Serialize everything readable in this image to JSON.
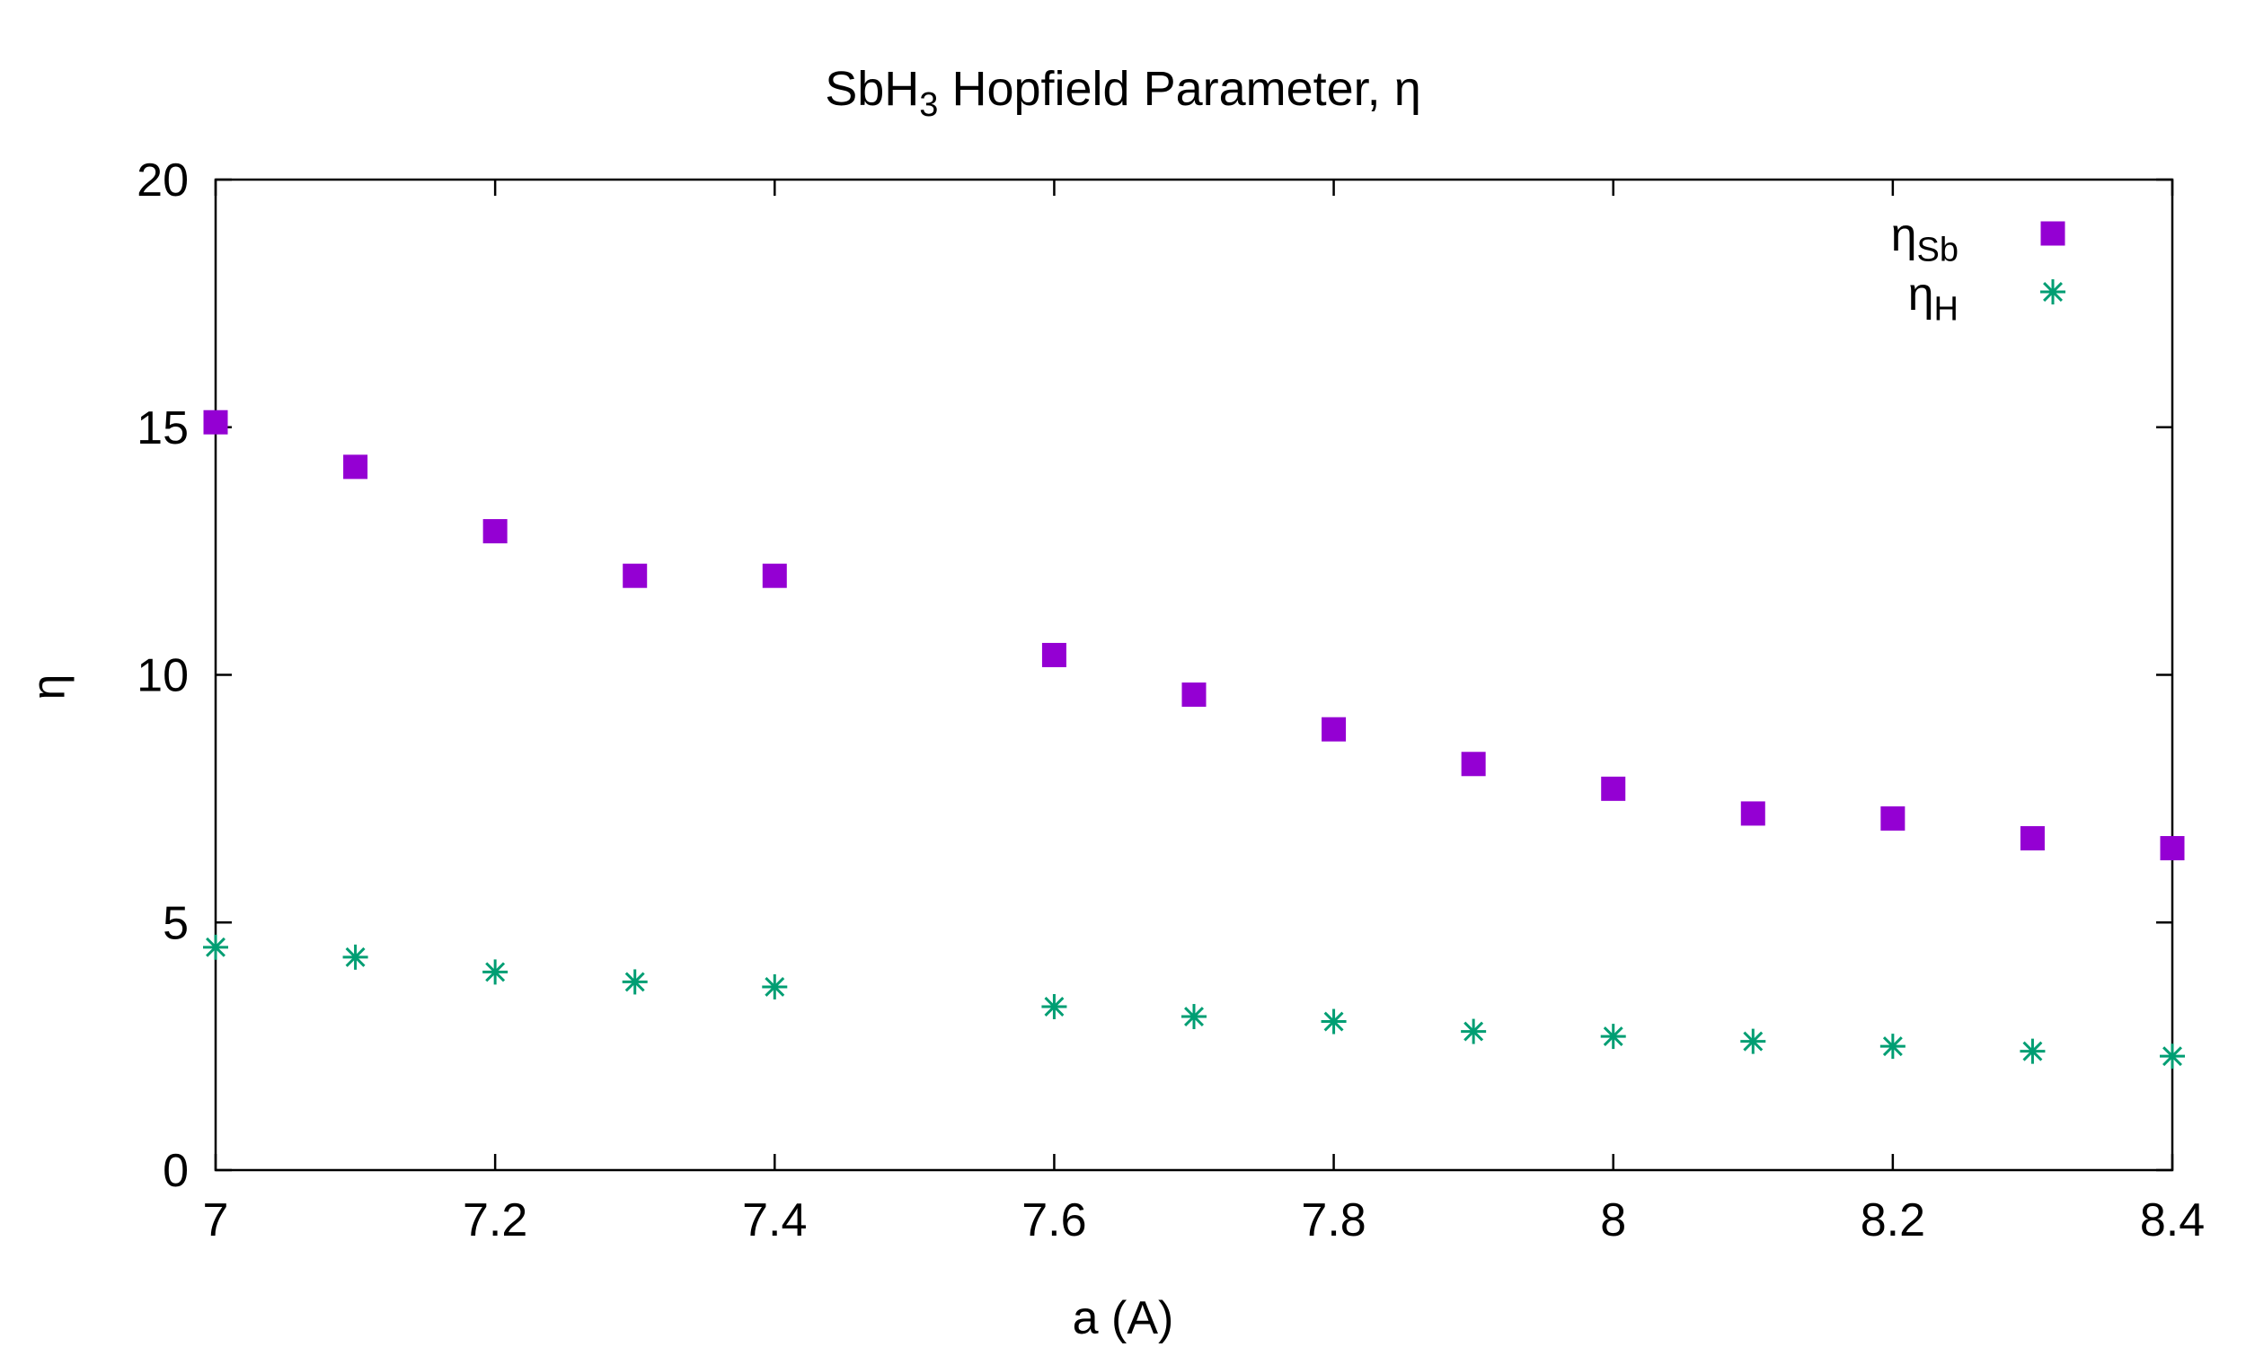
{
  "chart_data": {
    "type": "scatter",
    "title": {
      "main": "SbH",
      "sub": "3",
      "rest": " Hopfield Parameter, η"
    },
    "xlabel": "a (A)",
    "ylabel": "η",
    "xlim": [
      7,
      8.4
    ],
    "ylim": [
      0,
      20
    ],
    "xticks": [
      "7",
      "7.2",
      "7.4",
      "7.6",
      "7.8",
      "8",
      "8.2",
      "8.4"
    ],
    "yticks": [
      "0",
      "5",
      "10",
      "15",
      "20"
    ],
    "grid": false,
    "legend_position": "top-right",
    "series": [
      {
        "name": {
          "main": "η",
          "sub": "Sb"
        },
        "marker": "filled-square",
        "color": "#9400d3",
        "x": [
          7.0,
          7.1,
          7.2,
          7.3,
          7.4,
          7.6,
          7.7,
          7.8,
          7.9,
          8.0,
          8.1,
          8.2,
          8.3,
          8.4
        ],
        "y": [
          15.1,
          14.2,
          12.9,
          12.0,
          12.0,
          10.4,
          9.6,
          8.9,
          8.2,
          7.7,
          7.2,
          7.1,
          6.7,
          6.5
        ]
      },
      {
        "name": {
          "main": "η",
          "sub": "H"
        },
        "marker": "asterisk",
        "color": "#009e73",
        "x": [
          7.0,
          7.1,
          7.2,
          7.3,
          7.4,
          7.6,
          7.7,
          7.8,
          7.9,
          8.0,
          8.1,
          8.2,
          8.3,
          8.4
        ],
        "y": [
          4.5,
          4.3,
          4.0,
          3.8,
          3.7,
          3.3,
          3.1,
          3.0,
          2.8,
          2.7,
          2.6,
          2.5,
          2.4,
          2.3
        ]
      }
    ]
  }
}
